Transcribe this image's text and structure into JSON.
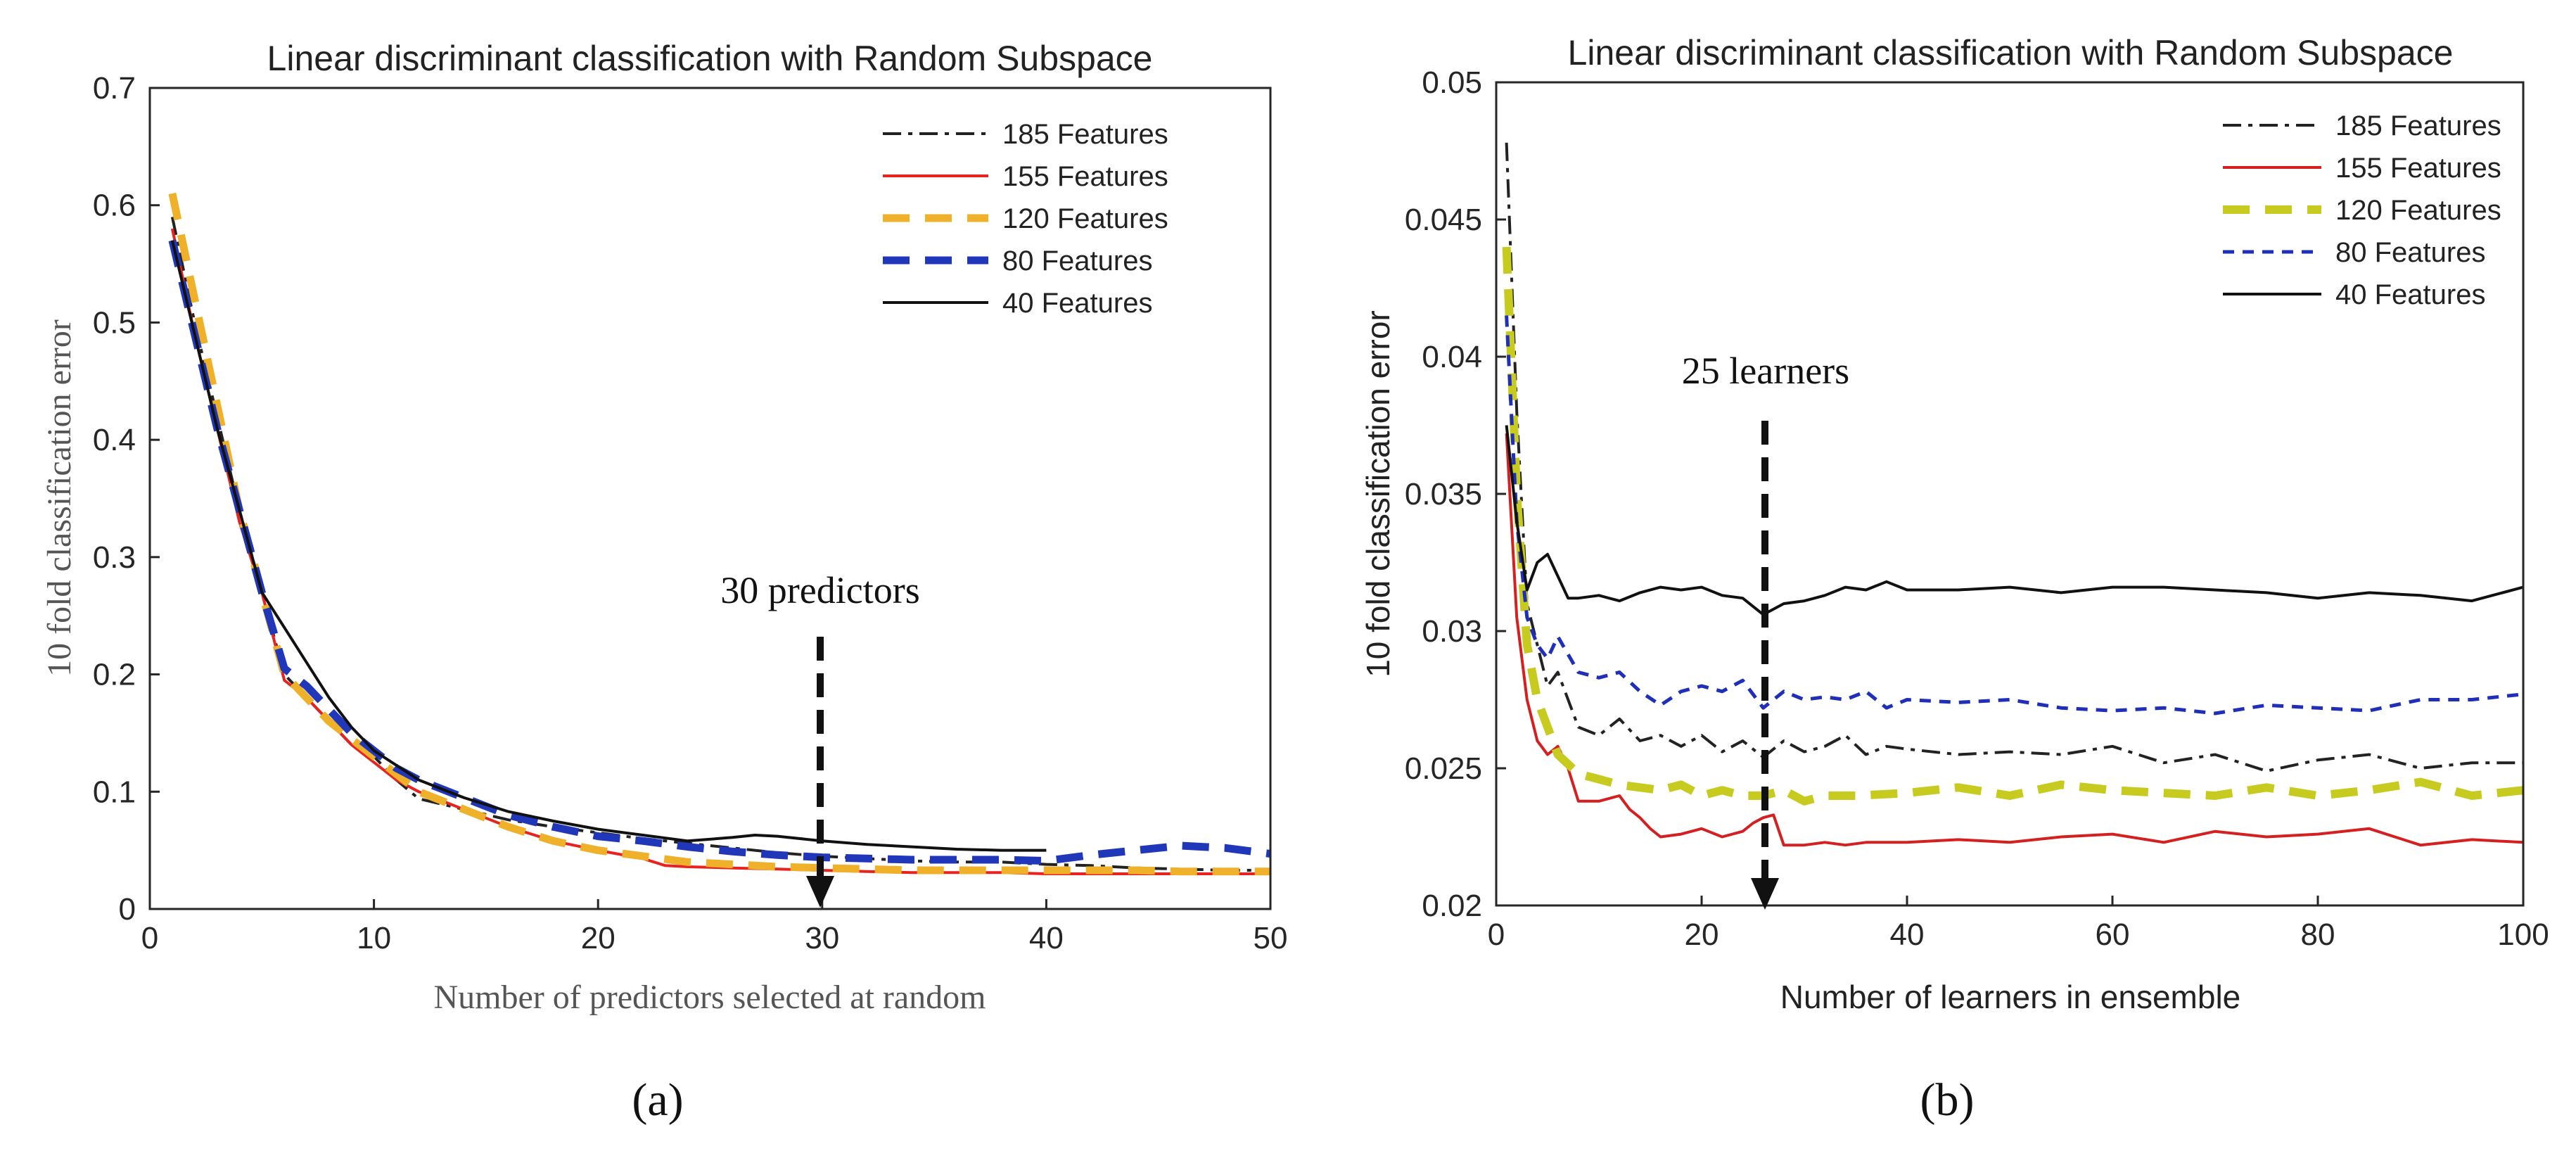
{
  "chart_data": [
    {
      "id": "a",
      "type": "line",
      "title": "Linear discriminant classification with Random Subspace",
      "xlabel": "Number of predictors selected at random",
      "ylabel": "10 fold classification error",
      "xlim": [
        0,
        50
      ],
      "ylim": [
        0,
        0.7
      ],
      "xticks": [
        0,
        10,
        20,
        30,
        40,
        50
      ],
      "yticks": [
        0,
        0.1,
        0.2,
        0.3,
        0.4,
        0.5,
        0.6,
        0.7
      ],
      "xtick_labels": [
        "0",
        "10",
        "20",
        "30",
        "40",
        "50"
      ],
      "ytick_labels": [
        "0",
        "0.1",
        "0.2",
        "0.3",
        "0.4",
        "0.5",
        "0.6",
        "0.7"
      ],
      "legend_position": "top-right",
      "annotation": {
        "text": "30 predictors",
        "x": 30,
        "y_from": 0.26,
        "y_to": 0.0
      },
      "caption": "(a)",
      "series": [
        {
          "name": "185 Features",
          "color": "#222222",
          "style": "dashdot",
          "x": [
            1,
            2,
            3,
            4,
            5,
            6,
            7,
            8,
            9,
            10,
            11,
            12,
            14,
            16,
            18,
            20,
            22,
            24,
            26,
            28,
            30,
            32,
            34,
            36,
            38,
            40,
            42,
            44,
            46,
            48,
            50
          ],
          "y": [
            0.59,
            0.5,
            0.42,
            0.34,
            0.27,
            0.2,
            0.18,
            0.16,
            0.14,
            0.13,
            0.11,
            0.094,
            0.085,
            0.076,
            0.07,
            0.065,
            0.06,
            0.056,
            0.052,
            0.048,
            0.045,
            0.043,
            0.041,
            0.04,
            0.04,
            0.038,
            0.037,
            0.035,
            0.034,
            0.033,
            0.033
          ]
        },
        {
          "name": "155 Features",
          "color": "#e8231f",
          "style": "solid",
          "x": [
            1,
            2,
            3,
            4,
            5,
            6,
            7,
            8,
            9,
            10,
            11,
            12,
            14,
            16,
            18,
            20,
            22,
            23,
            24,
            26,
            28,
            30,
            32,
            34,
            36,
            38,
            40,
            42,
            44,
            46,
            48,
            50
          ],
          "y": [
            0.58,
            0.49,
            0.41,
            0.33,
            0.27,
            0.195,
            0.18,
            0.16,
            0.14,
            0.125,
            0.11,
            0.1,
            0.085,
            0.07,
            0.058,
            0.05,
            0.043,
            0.037,
            0.036,
            0.035,
            0.034,
            0.033,
            0.032,
            0.031,
            0.031,
            0.031,
            0.03,
            0.03,
            0.03,
            0.03,
            0.03,
            0.03
          ]
        },
        {
          "name": "120 Features",
          "color": "#f0b12a",
          "style": "dashed",
          "x": [
            1,
            2,
            3,
            4,
            5,
            6,
            7,
            8,
            9,
            10,
            11,
            12,
            14,
            16,
            18,
            20,
            22,
            24,
            26,
            28,
            30,
            32,
            34,
            36,
            38,
            40,
            42,
            44,
            46,
            48,
            50
          ],
          "y": [
            0.61,
            0.52,
            0.43,
            0.34,
            0.27,
            0.2,
            0.18,
            0.16,
            0.145,
            0.13,
            0.115,
            0.1,
            0.085,
            0.07,
            0.058,
            0.05,
            0.045,
            0.04,
            0.038,
            0.036,
            0.035,
            0.034,
            0.033,
            0.033,
            0.033,
            0.033,
            0.033,
            0.033,
            0.032,
            0.032,
            0.032
          ]
        },
        {
          "name": "80 Features",
          "color": "#1f37b8",
          "style": "dashed",
          "x": [
            1,
            2,
            3,
            4,
            5,
            6,
            7,
            8,
            9,
            10,
            11,
            12,
            14,
            16,
            18,
            20,
            22,
            24,
            26,
            28,
            30,
            32,
            34,
            36,
            38,
            40,
            42,
            44,
            46,
            48,
            50
          ],
          "y": [
            0.57,
            0.49,
            0.41,
            0.34,
            0.27,
            0.205,
            0.19,
            0.17,
            0.15,
            0.135,
            0.12,
            0.11,
            0.095,
            0.08,
            0.07,
            0.062,
            0.058,
            0.053,
            0.049,
            0.046,
            0.044,
            0.043,
            0.042,
            0.042,
            0.042,
            0.041,
            0.046,
            0.05,
            0.054,
            0.052,
            0.047
          ]
        },
        {
          "name": "40 Features",
          "color": "#111111",
          "style": "solid",
          "x": [
            1,
            2,
            3,
            4,
            5,
            6,
            7,
            8,
            9,
            10,
            12,
            14,
            16,
            18,
            20,
            22,
            24,
            26,
            27,
            28,
            30,
            32,
            34,
            36,
            38,
            40
          ],
          "y": [
            0.57,
            0.49,
            0.41,
            0.34,
            0.27,
            0.24,
            0.21,
            0.18,
            0.155,
            0.135,
            0.11,
            0.095,
            0.083,
            0.075,
            0.068,
            0.063,
            0.058,
            0.061,
            0.063,
            0.062,
            0.058,
            0.055,
            0.053,
            0.051,
            0.05,
            0.05
          ]
        }
      ]
    },
    {
      "id": "b",
      "type": "line",
      "title": "Linear discriminant classification with Random Subspace",
      "xlabel": "Number of learners in ensemble",
      "ylabel": "10 fold classification error",
      "xlim": [
        0,
        100
      ],
      "ylim": [
        0.02,
        0.05
      ],
      "xticks": [
        0,
        20,
        40,
        60,
        80,
        100
      ],
      "yticks": [
        0.02,
        0.025,
        0.03,
        0.035,
        0.04,
        0.045,
        0.05
      ],
      "xtick_labels": [
        "0",
        "20",
        "40",
        "60",
        "80",
        "100"
      ],
      "ytick_labels": [
        "0.02",
        "0.025",
        "0.03",
        "0.035",
        "0.04",
        "0.045",
        "0.05"
      ],
      "legend_position": "top-right",
      "annotation": {
        "text": "25 learners",
        "x": 26,
        "y_from": 0.0385,
        "y_to": 0.02
      },
      "caption": "(b)",
      "series": [
        {
          "name": "185 Features",
          "color": "#222222",
          "style": "dashdot",
          "x": [
            1,
            2,
            3,
            4,
            5,
            6,
            8,
            10,
            12,
            14,
            16,
            18,
            20,
            22,
            24,
            26,
            28,
            30,
            32,
            34,
            36,
            38,
            40,
            45,
            50,
            55,
            60,
            65,
            70,
            75,
            80,
            85,
            90,
            95,
            100
          ],
          "y": [
            0.0478,
            0.038,
            0.031,
            0.0295,
            0.028,
            0.0285,
            0.0265,
            0.0262,
            0.0268,
            0.026,
            0.0262,
            0.0258,
            0.0262,
            0.0256,
            0.026,
            0.0254,
            0.026,
            0.0256,
            0.0258,
            0.0262,
            0.0255,
            0.0258,
            0.0257,
            0.0255,
            0.0256,
            0.0255,
            0.0258,
            0.0252,
            0.0255,
            0.0249,
            0.0253,
            0.0255,
            0.025,
            0.0252,
            0.0252
          ]
        },
        {
          "name": "155 Features",
          "color": "#d42020",
          "style": "solid",
          "x": [
            1,
            2,
            3,
            4,
            5,
            6,
            7,
            8,
            10,
            12,
            13,
            14,
            15,
            16,
            18,
            20,
            22,
            24,
            25,
            26,
            27,
            28,
            30,
            32,
            34,
            36,
            40,
            45,
            50,
            55,
            60,
            65,
            70,
            75,
            80,
            85,
            90,
            95,
            100
          ],
          "y": [
            0.0372,
            0.0305,
            0.0275,
            0.026,
            0.0255,
            0.0258,
            0.025,
            0.0238,
            0.0238,
            0.024,
            0.0235,
            0.0232,
            0.0228,
            0.0225,
            0.0226,
            0.0228,
            0.0225,
            0.0227,
            0.023,
            0.0232,
            0.0233,
            0.0222,
            0.0222,
            0.0223,
            0.0222,
            0.0223,
            0.0223,
            0.0224,
            0.0223,
            0.0225,
            0.0226,
            0.0223,
            0.0227,
            0.0225,
            0.0226,
            0.0228,
            0.0222,
            0.0224,
            0.0223
          ]
        },
        {
          "name": "120 Features",
          "color": "#c8cb1f",
          "style": "dashed",
          "x": [
            1,
            2,
            3,
            4,
            5,
            6,
            8,
            10,
            12,
            14,
            16,
            18,
            20,
            22,
            24,
            26,
            28,
            30,
            32,
            35,
            40,
            45,
            50,
            55,
            60,
            65,
            70,
            75,
            80,
            85,
            90,
            95,
            100
          ],
          "y": [
            0.044,
            0.035,
            0.0295,
            0.0275,
            0.0265,
            0.0255,
            0.0248,
            0.0246,
            0.0244,
            0.0243,
            0.0242,
            0.0244,
            0.024,
            0.0242,
            0.024,
            0.024,
            0.0242,
            0.0238,
            0.024,
            0.024,
            0.0241,
            0.0243,
            0.024,
            0.0244,
            0.0242,
            0.0241,
            0.024,
            0.0243,
            0.024,
            0.0242,
            0.0245,
            0.024,
            0.0242
          ]
        },
        {
          "name": "80 Features",
          "color": "#1f2fb8",
          "style": "dotted",
          "x": [
            1,
            2,
            3,
            4,
            5,
            6,
            8,
            10,
            12,
            14,
            16,
            18,
            20,
            22,
            24,
            26,
            28,
            30,
            32,
            34,
            36,
            38,
            40,
            45,
            50,
            55,
            60,
            65,
            70,
            75,
            80,
            85,
            90,
            95,
            100
          ],
          "y": [
            0.0415,
            0.034,
            0.0305,
            0.0295,
            0.029,
            0.0298,
            0.0285,
            0.0283,
            0.0285,
            0.0278,
            0.0273,
            0.0278,
            0.028,
            0.0278,
            0.0282,
            0.0272,
            0.0278,
            0.0275,
            0.0276,
            0.0275,
            0.0278,
            0.0272,
            0.0275,
            0.0274,
            0.0275,
            0.0272,
            0.0271,
            0.0272,
            0.027,
            0.0273,
            0.0272,
            0.0271,
            0.0275,
            0.0275,
            0.0277
          ]
        },
        {
          "name": "40 Features",
          "color": "#111111",
          "style": "solid",
          "x": [
            1,
            2,
            3,
            4,
            5,
            6,
            7,
            8,
            10,
            12,
            14,
            16,
            18,
            20,
            22,
            24,
            26,
            28,
            30,
            32,
            34,
            36,
            38,
            40,
            45,
            50,
            55,
            60,
            65,
            70,
            75,
            80,
            85,
            90,
            95,
            100
          ],
          "y": [
            0.0375,
            0.034,
            0.0315,
            0.0325,
            0.0328,
            0.032,
            0.0312,
            0.0312,
            0.0313,
            0.0311,
            0.0314,
            0.0316,
            0.0315,
            0.0316,
            0.0313,
            0.0312,
            0.0306,
            0.031,
            0.0311,
            0.0313,
            0.0316,
            0.0315,
            0.0318,
            0.0315,
            0.0315,
            0.0316,
            0.0314,
            0.0316,
            0.0316,
            0.0315,
            0.0314,
            0.0312,
            0.0314,
            0.0313,
            0.0311,
            0.0316
          ]
        }
      ]
    }
  ]
}
